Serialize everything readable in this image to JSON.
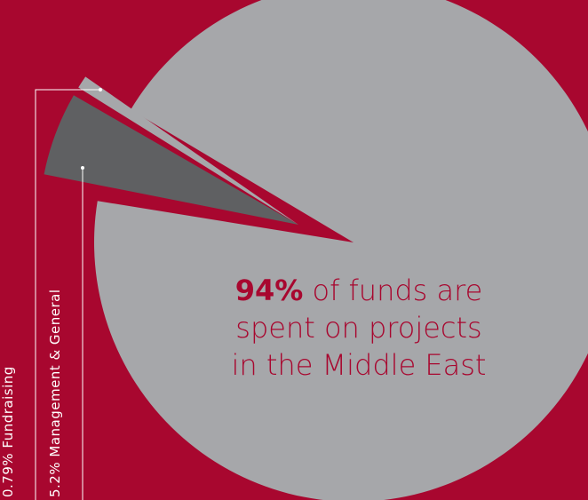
{
  "chart_data": {
    "type": "pie",
    "title": "",
    "slices": [
      {
        "label": "Projects in the Middle East",
        "value": 94,
        "color": "#a6a7aa"
      },
      {
        "label": "Management & General",
        "value": 5.2,
        "color": "#5f6062"
      },
      {
        "label": "Fundraising",
        "value": 0.79,
        "color": "#a6a7aa"
      }
    ],
    "annotations": {
      "headline_value": "94%",
      "headline_text_lines": [
        "of funds are",
        "spent on projects",
        "in the Middle East"
      ],
      "fundraising_label": "0.79% Fundraising",
      "management_label": "5.2% Management & General"
    }
  },
  "colors": {
    "background": "#a8072f",
    "leader_lines": "#ffffff",
    "main_slice": "#a6a7aa",
    "management_slice": "#5f6062",
    "fundraising_slice": "#a6a7aa"
  }
}
